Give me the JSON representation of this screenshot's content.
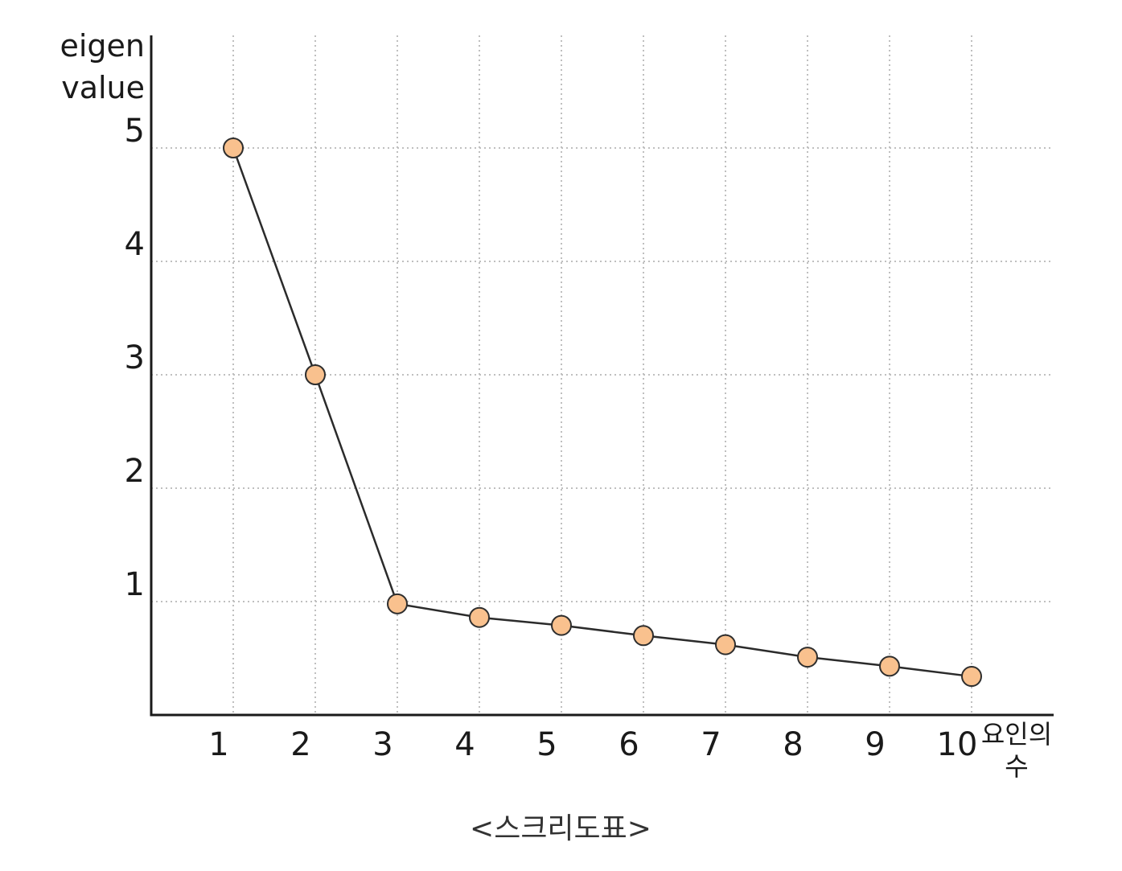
{
  "chart_data": {
    "type": "line",
    "x": [
      1,
      2,
      3,
      4,
      5,
      6,
      7,
      8,
      9,
      10
    ],
    "series": [
      {
        "values": [
          5.0,
          3.0,
          0.98,
          0.86,
          0.79,
          0.7,
          0.62,
          0.51,
          0.43,
          0.34
        ]
      }
    ],
    "ylabel_lines": [
      "eigen",
      "value"
    ],
    "xlabel_lines": [
      "요인의",
      "수"
    ],
    "caption": "<스크리도표>",
    "y_ticks": [
      1,
      2,
      3,
      4,
      5
    ],
    "x_ticks": [
      1,
      2,
      3,
      4,
      5,
      6,
      7,
      8,
      9,
      10
    ],
    "xlim": [
      0,
      11
    ],
    "ylim": [
      0,
      6
    ],
    "grid": true,
    "marker_color": "#f9c18e",
    "line_color": "#2b2b2b"
  }
}
